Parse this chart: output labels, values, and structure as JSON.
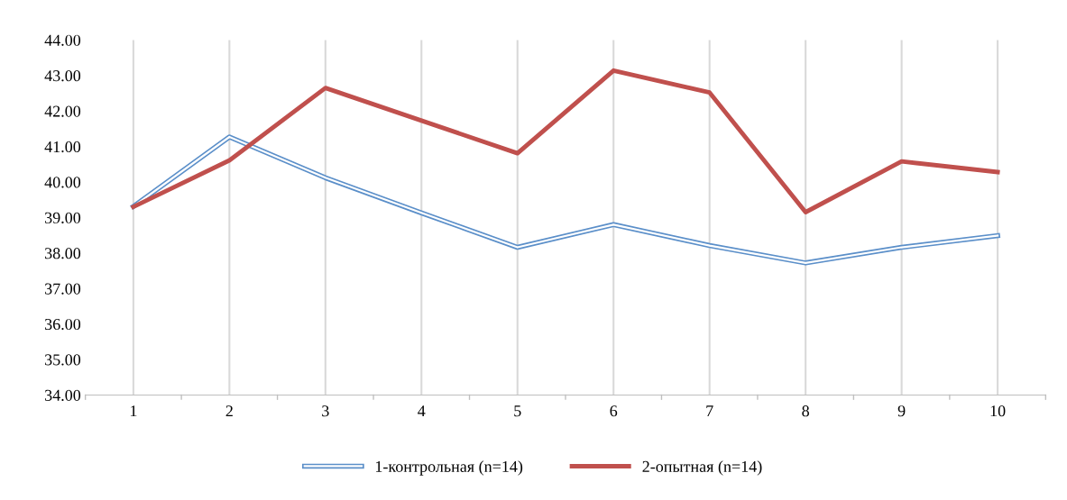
{
  "chart_data": {
    "type": "line",
    "categories": [
      "1",
      "2",
      "3",
      "4",
      "5",
      "6",
      "7",
      "8",
      "9",
      "10"
    ],
    "series": [
      {
        "name": "1-контрольная (n=14)",
        "color": "#5b8fc9",
        "values": [
          39.31,
          41.27,
          40.12,
          39.13,
          38.16,
          38.8,
          38.21,
          37.72,
          38.16,
          38.49
        ]
      },
      {
        "name": "2-опытная (n=14)",
        "color": "#c0504d",
        "values": [
          39.3,
          40.61,
          42.65,
          41.73,
          40.81,
          43.14,
          42.52,
          39.15,
          40.58,
          40.28
        ]
      }
    ],
    "ylim": [
      34,
      44
    ],
    "yticks": [
      {
        "value": 34,
        "label": "34.00"
      },
      {
        "value": 35,
        "label": "35.00"
      },
      {
        "value": 36,
        "label": "36.00"
      },
      {
        "value": 37,
        "label": "37.00"
      },
      {
        "value": 38,
        "label": "38.00"
      },
      {
        "value": 39,
        "label": "39.00"
      },
      {
        "value": 40,
        "label": "40.00"
      },
      {
        "value": 41,
        "label": "41.00"
      },
      {
        "value": 42,
        "label": "42.00"
      },
      {
        "value": 43,
        "label": "43.00"
      },
      {
        "value": 44,
        "label": "44.00"
      }
    ],
    "grid": "x",
    "legend": "bottom",
    "marker": "none",
    "line_style": "solid"
  }
}
